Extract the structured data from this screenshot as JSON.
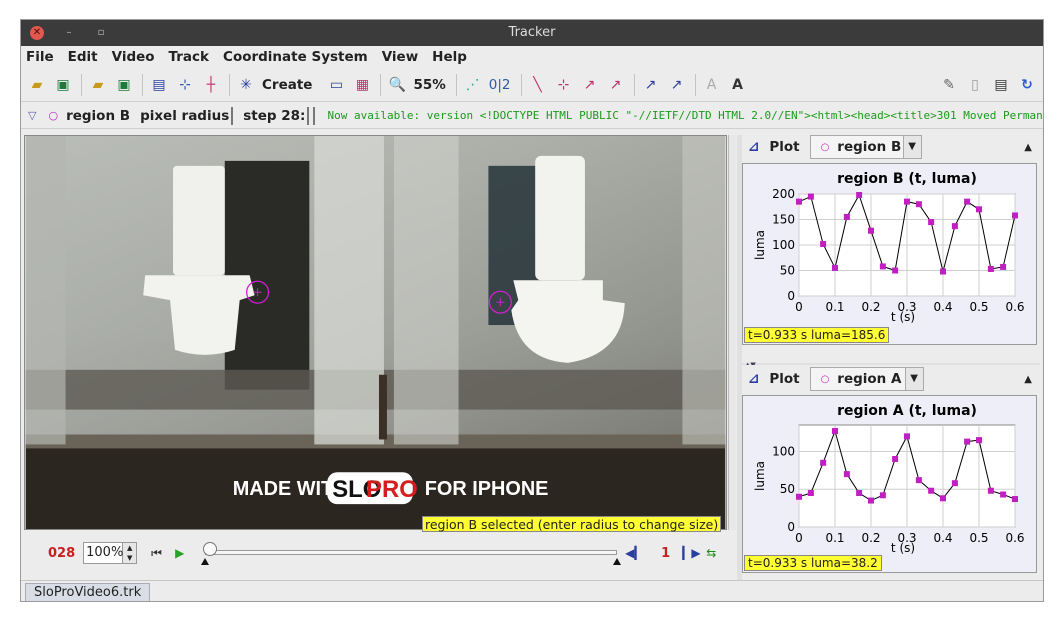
{
  "window": {
    "title": "Tracker"
  },
  "menu": [
    "File",
    "Edit",
    "Video",
    "Track",
    "Coordinate System",
    "View",
    "Help"
  ],
  "toolbar": {
    "create_label": "Create",
    "zoom_label": "55%",
    "coords_label": "0|2"
  },
  "trackbar": {
    "track_name": "region B",
    "radius_label": "pixel radius",
    "step_label": "step 28:",
    "announcement": "Now available: version <!DOCTYPE HTML PUBLIC \"-//IETF//DTD HTML 2.0//EN\"><html><head><title>301 Moved Permanen"
  },
  "video": {
    "watermark_left": "MADE WITH",
    "watermark_logo_a": "SLO",
    "watermark_logo_b": "PRO",
    "watermark_right": "FOR IPHONE",
    "status": "region B selected (enter radius to change size)"
  },
  "player": {
    "frame": "028",
    "zoom": "100%",
    "step_size": "1"
  },
  "tabs": [
    "SloProVideo6.trk"
  ],
  "plots": [
    {
      "header": "Plot",
      "track": "region B",
      "title": "region B (t, luma)",
      "xlabel": "t (s)",
      "ylabel": "luma",
      "readout": "t=0.933 s  luma=185.6",
      "chart_data": {
        "type": "line",
        "title": "region B (t, luma)",
        "xlabel": "t (s)",
        "ylabel": "luma",
        "xlim": [
          0,
          0.6
        ],
        "ylim": [
          0,
          200
        ],
        "xticks": [
          0,
          0.1,
          0.2,
          0.3,
          0.4,
          0.5,
          0.6
        ],
        "yticks": [
          0,
          50,
          100,
          150,
          200
        ],
        "x": [
          0,
          0.033,
          0.067,
          0.1,
          0.133,
          0.167,
          0.2,
          0.233,
          0.267,
          0.3,
          0.333,
          0.367,
          0.4,
          0.433,
          0.467,
          0.5,
          0.533,
          0.567,
          0.6
        ],
        "y": [
          185,
          195,
          102,
          55,
          155,
          198,
          128,
          58,
          50,
          185,
          180,
          145,
          48,
          137,
          185,
          170,
          53,
          57,
          158
        ],
        "marker_color": "#c020c0"
      }
    },
    {
      "header": "Plot",
      "track": "region A",
      "title": "region A (t, luma)",
      "xlabel": "t (s)",
      "ylabel": "luma",
      "readout": "t=0.933 s  luma=38.2",
      "chart_data": {
        "type": "line",
        "title": "region A (t, luma)",
        "xlabel": "t (s)",
        "ylabel": "luma",
        "xlim": [
          0,
          0.6
        ],
        "ylim": [
          0,
          135
        ],
        "xticks": [
          0,
          0.1,
          0.2,
          0.3,
          0.4,
          0.5,
          0.6
        ],
        "yticks": [
          0,
          50,
          100
        ],
        "x": [
          0,
          0.033,
          0.067,
          0.1,
          0.133,
          0.167,
          0.2,
          0.233,
          0.267,
          0.3,
          0.333,
          0.367,
          0.4,
          0.433,
          0.467,
          0.5,
          0.533,
          0.567,
          0.6
        ],
        "y": [
          40,
          45,
          85,
          127,
          70,
          45,
          35,
          42,
          90,
          120,
          62,
          48,
          38,
          58,
          113,
          115,
          48,
          43,
          37
        ],
        "marker_color": "#c020c0"
      }
    }
  ]
}
